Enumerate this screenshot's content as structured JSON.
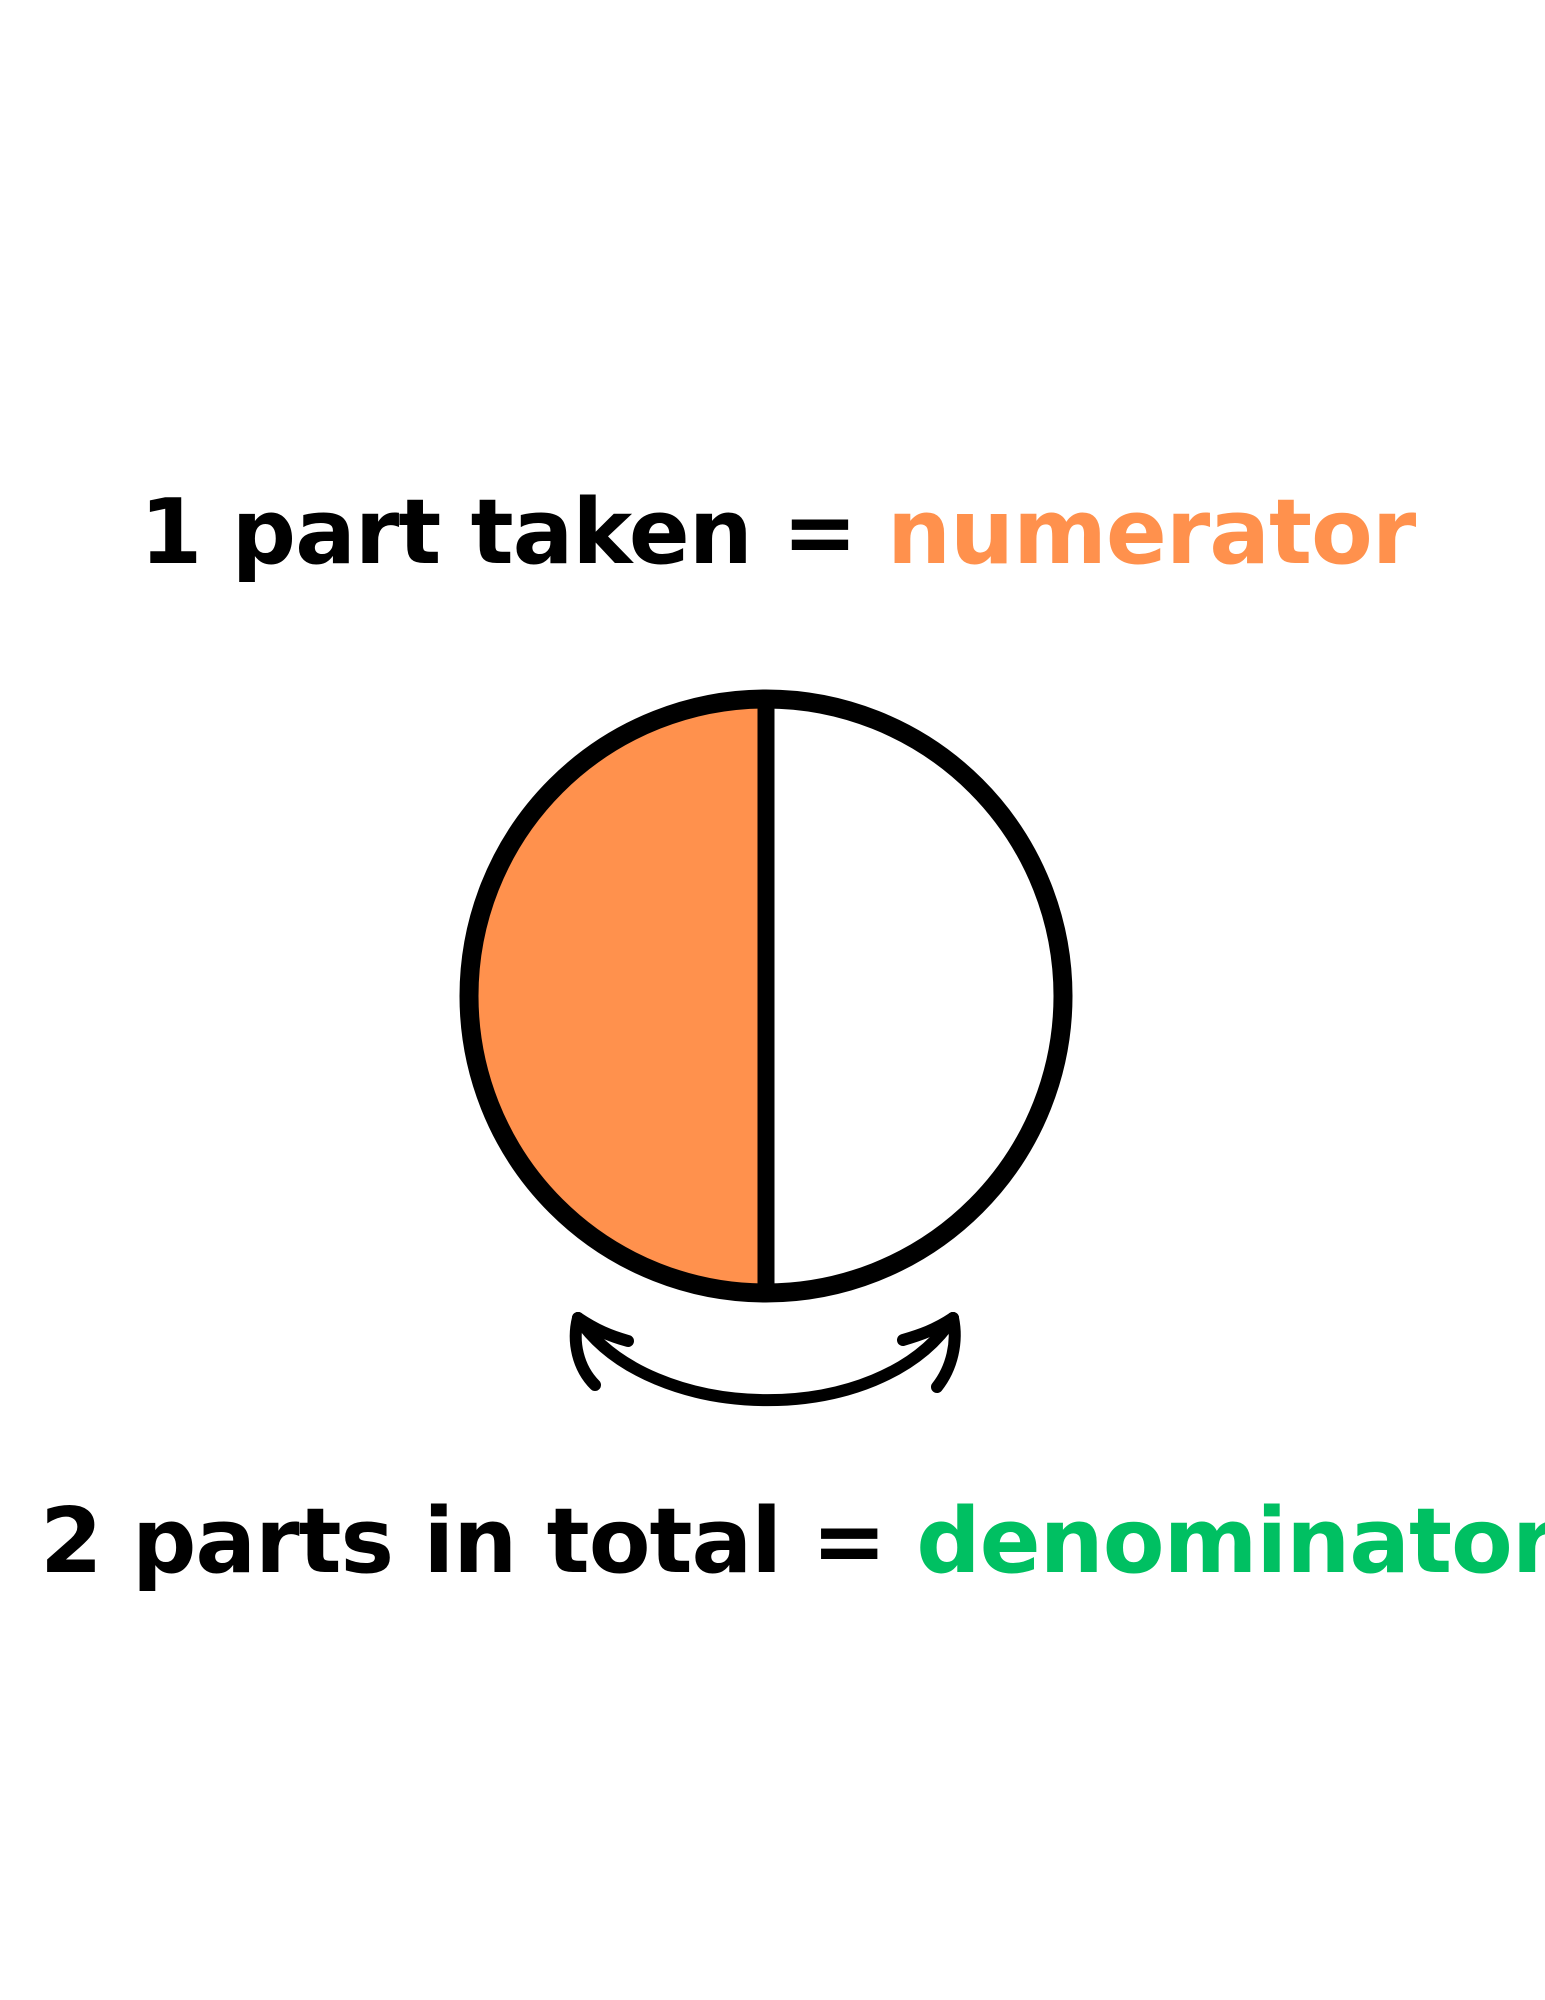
{
  "numerator_line": {
    "prefix": "1 part taken = ",
    "term": "numerator"
  },
  "denominator_line": {
    "prefix": "2 parts in total = ",
    "term": "denominator"
  },
  "fraction": {
    "parts_total": 2,
    "parts_taken": 1
  },
  "colors": {
    "numerator": "#FF914D",
    "denominator": "#00C062",
    "outline": "#000000",
    "background": "#FFFFFF"
  }
}
